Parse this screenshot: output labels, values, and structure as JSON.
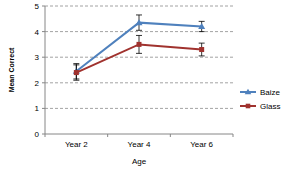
{
  "chart_data": {
    "type": "line",
    "categories": [
      "Year 2",
      "Year 4",
      "Year 6"
    ],
    "x_label": "Age",
    "y_label": "Mean Correct",
    "series": [
      {
        "name": "Baize",
        "color": "#4f81bd",
        "marker": "triangle",
        "line_style": "solid",
        "values": [
          2.45,
          4.35,
          4.2
        ],
        "errors": [
          0.3,
          0.3,
          0.2
        ]
      },
      {
        "name": "Glass",
        "color": "#a0322e",
        "marker": "square",
        "line_style": "solid",
        "values": [
          2.4,
          3.5,
          3.3
        ],
        "errors": [
          0.3,
          0.35,
          0.25
        ]
      }
    ],
    "ylim": [
      0,
      5
    ],
    "yticks": [
      0,
      1,
      2,
      3,
      4,
      5
    ],
    "grid": true,
    "legend": "right"
  }
}
